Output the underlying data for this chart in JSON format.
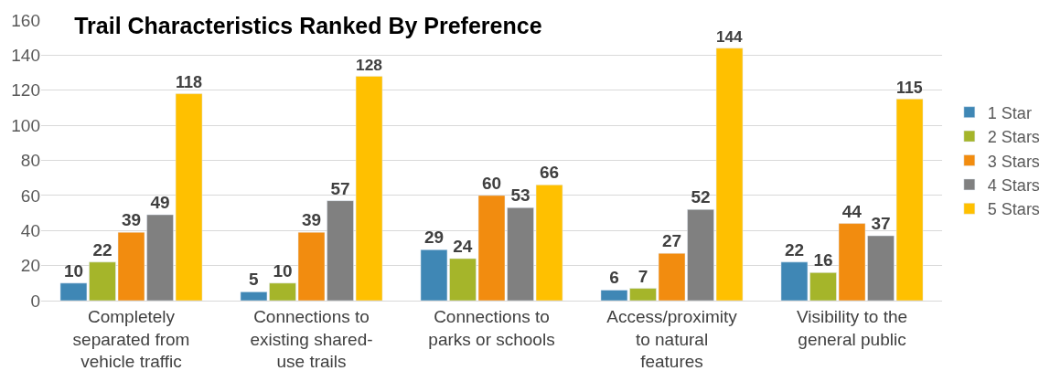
{
  "chart_data": {
    "type": "bar",
    "title": "Trail Characteristics Ranked By Preference",
    "categories": [
      "Completely separated from vehicle traffic",
      "Connections to existing shared-use trails",
      "Connections to parks or schools",
      "Access/proximity to natural features",
      "Visibility to the general public"
    ],
    "series": [
      {
        "name": "1 Star",
        "color": "#3f87b5",
        "values": [
          10,
          5,
          29,
          6,
          22
        ]
      },
      {
        "name": "2 Stars",
        "color": "#a5b52a",
        "values": [
          22,
          10,
          24,
          7,
          16
        ]
      },
      {
        "name": "3 Stars",
        "color": "#f28c0f",
        "values": [
          39,
          39,
          60,
          27,
          44
        ]
      },
      {
        "name": "4 Stars",
        "color": "#808080",
        "values": [
          49,
          57,
          53,
          52,
          37
        ]
      },
      {
        "name": "5 Stars",
        "color": "#ffc000",
        "values": [
          118,
          128,
          66,
          144,
          115
        ]
      }
    ],
    "ylim": [
      0,
      160
    ],
    "yticks": [
      0,
      20,
      40,
      60,
      80,
      100,
      120,
      140,
      160
    ],
    "grid": "y",
    "legend": "right",
    "data_labels": true
  }
}
